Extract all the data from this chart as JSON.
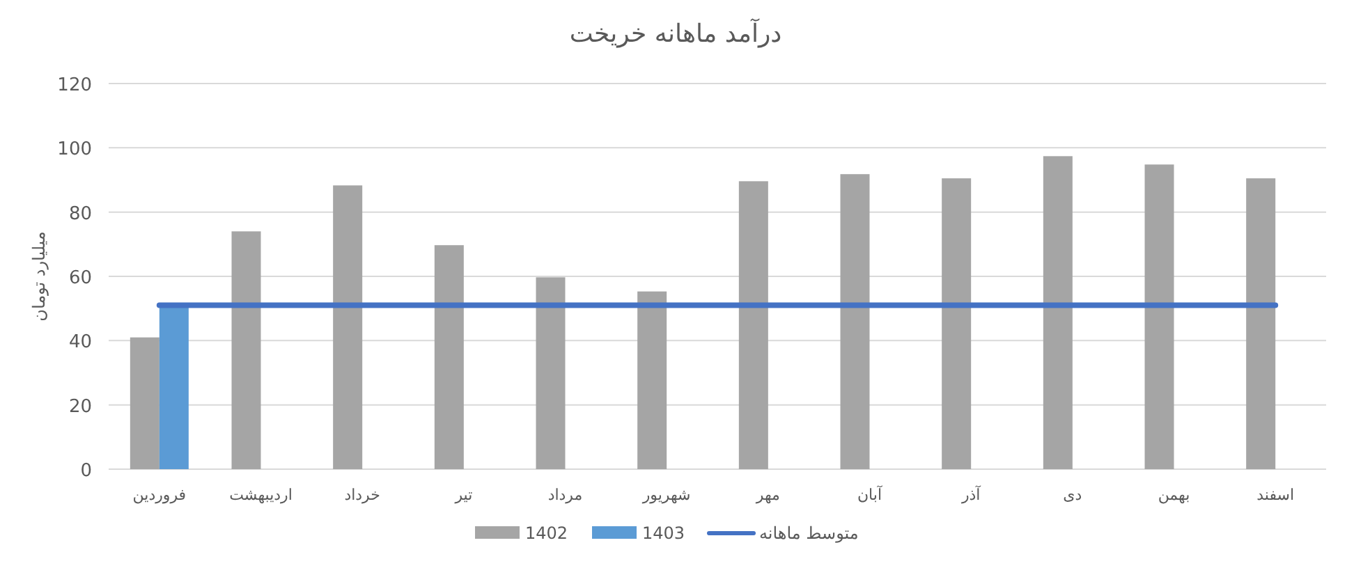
{
  "chart_data": {
    "type": "bar",
    "title": "درآمد ماهانه خریخت",
    "ylabel": "میلیارد تومان",
    "categories": [
      "فروردین",
      "اردیبهشت",
      "خرداد",
      "تیر",
      "مرداد",
      "شهریور",
      "مهر",
      "آبان",
      "آذر",
      "دی",
      "بهمن",
      "اسفند"
    ],
    "series": [
      {
        "name": "1402",
        "color": "#a5a5a5",
        "values": [
          41,
          74,
          88.3,
          69.7,
          59.7,
          55.3,
          89.6,
          91.8,
          90.5,
          97.4,
          94.8,
          90.5
        ]
      },
      {
        "name": "1403",
        "color": "#5b9bd5",
        "values": [
          51,
          null,
          null,
          null,
          null,
          null,
          null,
          null,
          null,
          null,
          null,
          null
        ]
      },
      {
        "name": "متوسط ماهانه",
        "type": "line",
        "color": "#4472c4",
        "values": [
          51,
          51,
          51,
          51,
          51,
          51,
          51,
          51,
          51,
          51,
          51,
          51
        ]
      }
    ],
    "ylim": [
      0,
      120
    ],
    "yticks": [
      0,
      20,
      40,
      60,
      80,
      100,
      120
    ],
    "grid": "y",
    "legend": "bottom"
  }
}
